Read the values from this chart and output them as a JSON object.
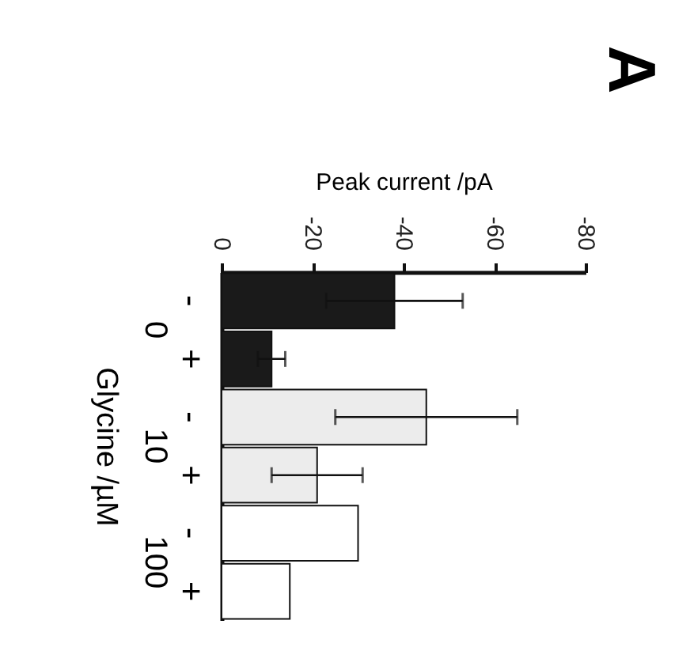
{
  "chart_data": {
    "type": "bar",
    "orientation": "horizontal",
    "title": "A",
    "xlabel": "Peak current /pA",
    "ylabel": "Glycine /µM",
    "categories": [
      "-",
      "+",
      "-",
      "+",
      "-",
      "+"
    ],
    "values": [
      -38,
      -11,
      -45,
      -21,
      -30,
      -15
    ],
    "errors": [
      15,
      3,
      20,
      10,
      null,
      null
    ],
    "colors": [
      "#1a1a1a",
      "#1a1a1a",
      "#ececec",
      "#ececec",
      "#ffffff",
      "#ffffff"
    ],
    "annotations": [
      "0",
      "10",
      "100"
    ],
    "xlim": [
      0,
      -80
    ],
    "xticks": [
      0,
      -20,
      -40,
      -60,
      -80
    ],
    "grid": false
  }
}
